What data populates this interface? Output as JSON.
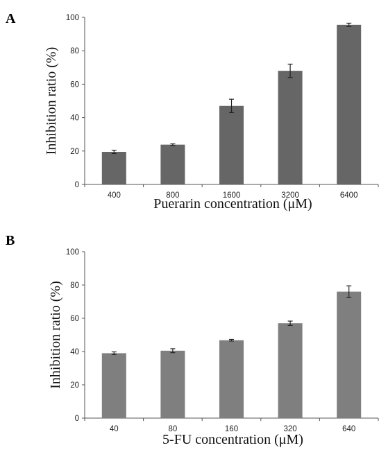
{
  "chart_data": [
    {
      "panel": "A",
      "type": "bar",
      "categories": [
        "400",
        "800",
        "1600",
        "3200",
        "6400"
      ],
      "values": [
        19.5,
        23.8,
        47.0,
        68.0,
        95.5
      ],
      "errors": [
        1.0,
        0.5,
        4.0,
        4.0,
        1.0
      ],
      "ylim": [
        0,
        100
      ],
      "yticks": [
        0,
        20,
        40,
        60,
        80,
        100
      ],
      "xlabel": "Puerarin concentration (μM)",
      "ylabel": "Inhibition ratio (%)",
      "bar_color": "#666666",
      "grid": false
    },
    {
      "panel": "B",
      "type": "bar",
      "categories": [
        "40",
        "80",
        "160",
        "320",
        "640"
      ],
      "values": [
        39.0,
        40.5,
        46.8,
        57.0,
        76.0
      ],
      "errors": [
        0.8,
        1.2,
        0.5,
        1.3,
        3.5
      ],
      "ylim": [
        0,
        100
      ],
      "yticks": [
        0,
        20,
        40,
        60,
        80,
        100
      ],
      "xlabel": "5-FU concentration (μM)",
      "ylabel": "Inhibition ratio (%)",
      "bar_color": "#7f7f7f",
      "grid": false
    }
  ]
}
